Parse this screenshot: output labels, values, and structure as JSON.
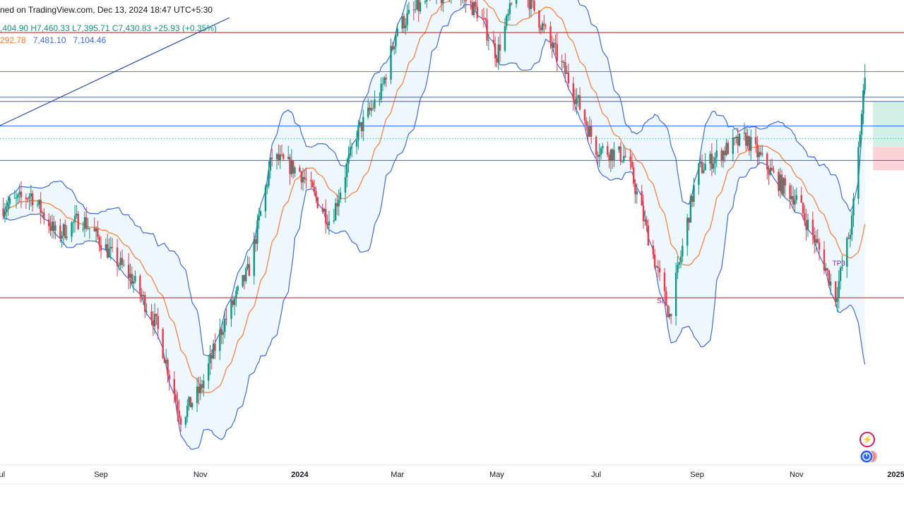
{
  "header": {
    "source": "ned on TradingView.com, Dec 13, 2024 18:47 UTC+5:30",
    "ohlc": ",404.90  H7,460.33  L7,395.71  C7,430.83  +25.93 (+0.35%)",
    "bb_basis": "292.78",
    "bb_upper": "7,481.10",
    "bb_lower": "7,104.46"
  },
  "colors": {
    "up": "#089981",
    "down": "#f23645",
    "basis": "#ff7a2f",
    "bands": "#3f6ae0",
    "band_fill": "#e3f2fd",
    "hline_red": "#b71c1c",
    "hline_blue": "#2962ff",
    "hline_teal": "#26a69a",
    "tp_zone": "#d2f0e6",
    "sl_zone": "#fbd3d6",
    "trendline": "#2a4ea8"
  },
  "chart_data": {
    "type": "candlestick",
    "timeframe": "daily",
    "x_range": [
      "2023-07-01",
      "2025-01-06"
    ],
    "y_range_estimated": [
      6600,
      7560
    ],
    "x_ticks": [
      {
        "date": "2023-07-01",
        "label": "Jul"
      },
      {
        "date": "2023-09-01",
        "label": "Sep"
      },
      {
        "date": "2023-11-01",
        "label": "Nov"
      },
      {
        "date": "2024-01-01",
        "label": "2024"
      },
      {
        "date": "2024-03-01",
        "label": "Mar"
      },
      {
        "date": "2024-05-01",
        "label": "May"
      },
      {
        "date": "2024-07-01",
        "label": "Jul"
      },
      {
        "date": "2024-09-01",
        "label": "Sep"
      },
      {
        "date": "2024-11-01",
        "label": "Nov"
      },
      {
        "date": "2025-01-01",
        "label": "2025"
      }
    ],
    "close_path": [
      [
        "2023-07-01",
        7150
      ],
      [
        "2023-07-20",
        7180
      ],
      [
        "2023-08-05",
        7090
      ],
      [
        "2023-08-20",
        7130
      ],
      [
        "2023-09-05",
        7060
      ],
      [
        "2023-09-20",
        7000
      ],
      [
        "2023-10-05",
        6900
      ],
      [
        "2023-10-20",
        6700
      ],
      [
        "2023-11-01",
        6760
      ],
      [
        "2023-11-15",
        6900
      ],
      [
        "2023-12-01",
        7020
      ],
      [
        "2023-12-15",
        7260
      ],
      [
        "2024-01-01",
        7230
      ],
      [
        "2024-01-20",
        7120
      ],
      [
        "2024-02-05",
        7310
      ],
      [
        "2024-02-20",
        7400
      ],
      [
        "2024-03-01",
        7540
      ],
      [
        "2024-03-20",
        7600
      ],
      [
        "2024-04-05",
        7620
      ],
      [
        "2024-04-20",
        7570
      ],
      [
        "2024-05-01",
        7480
      ],
      [
        "2024-05-15",
        7640
      ],
      [
        "2024-06-01",
        7520
      ],
      [
        "2024-06-15",
        7420
      ],
      [
        "2024-07-01",
        7280
      ],
      [
        "2024-07-20",
        7260
      ],
      [
        "2024-08-05",
        7050
      ],
      [
        "2024-08-15",
        6920
      ],
      [
        "2024-09-01",
        7230
      ],
      [
        "2024-09-20",
        7280
      ],
      [
        "2024-10-01",
        7300
      ],
      [
        "2024-10-20",
        7210
      ],
      [
        "2024-11-01",
        7170
      ],
      [
        "2024-11-15",
        7060
      ],
      [
        "2024-11-25",
        6960
      ],
      [
        "2024-12-05",
        7120
      ],
      [
        "2024-12-13",
        7430.83
      ]
    ],
    "last_bar": {
      "date": "2024-12-13",
      "open": 7404.9,
      "high": 7460.33,
      "low": 7395.71,
      "close": 7430.83,
      "change": 25.93,
      "change_pct": 0.35
    },
    "bollinger": {
      "basis": 7292.78,
      "upper": 7481.1,
      "lower": 7104.46
    },
    "horizontal_levels": [
      {
        "price": 7528,
        "color": "red"
      },
      {
        "price": 7444,
        "color": "teal"
      },
      {
        "price": 7389,
        "color": "blue"
      },
      {
        "price": 7380,
        "color": "blue"
      },
      {
        "price": 7327,
        "color": "blue"
      },
      {
        "price": 7300,
        "color": "teal-dotted"
      },
      {
        "price": 7253,
        "color": "blue"
      },
      {
        "price": 6958,
        "color": "red"
      }
    ],
    "annotations": [
      {
        "text": "SL",
        "date": "2024-08-10",
        "price": 6965
      },
      {
        "text": "TP3",
        "date": "2024-11-27",
        "price": 7045
      }
    ],
    "position_tool": {
      "entry": 7282,
      "target": 7380,
      "stop": 7232,
      "start_date": "2024-12-18"
    }
  }
}
